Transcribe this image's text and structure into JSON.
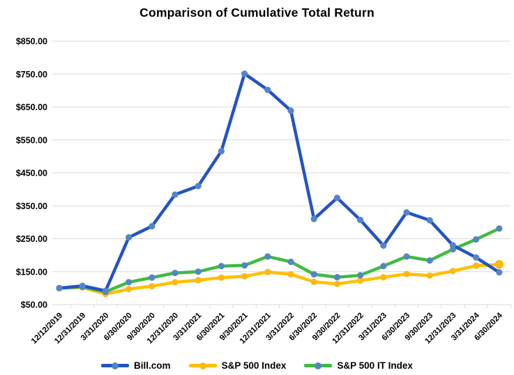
{
  "chart_data": {
    "type": "line",
    "title": "Comparison of Cumulative Total Return",
    "x_categories": [
      "12/12/2019",
      "12/31/2019",
      "3/31/2020",
      "6/30/2020",
      "9/30/2020",
      "12/31/2020",
      "3/31/2021",
      "6/30/2021",
      "9/30/2021",
      "12/31/2021",
      "3/31/2022",
      "6/30/2022",
      "9/30/2022",
      "12/31/2022",
      "3/31/2023",
      "6/30/2023",
      "9/30/2023",
      "12/31/2023",
      "3/31/2024",
      "6/30/2024"
    ],
    "y_axis": {
      "min": 50,
      "max": 850,
      "step": 100,
      "tick_labels": [
        "$850.00",
        "$750.00",
        "$650.00",
        "$550.00",
        "$450.00",
        "$350.00",
        "$250.00",
        "$150.00",
        "$50.00"
      ]
    },
    "grid": true,
    "legend_position": "bottom",
    "series": [
      {
        "name": "Bill.com",
        "line_color": "#2353c4",
        "marker_color": "#5585c8",
        "values": [
          100,
          107,
          92,
          254,
          288,
          384,
          410,
          516,
          751,
          702,
          639,
          310,
          374,
          307,
          229,
          330,
          306,
          230,
          193,
          148
        ]
      },
      {
        "name": "S&P 500 Index",
        "line_color": "#ffc000",
        "marker_color": "#fdb913",
        "last_marker_large": true,
        "values": [
          100,
          102,
          82,
          97,
          106,
          118,
          124,
          132,
          136,
          149,
          142,
          119,
          113,
          123,
          133,
          143,
          138,
          152,
          168,
          172
        ]
      },
      {
        "name": "S&P 500 IT Index",
        "line_color": "#3fbb3f",
        "marker_color": "#5585c8",
        "values": [
          100,
          104,
          89,
          118,
          132,
          146,
          150,
          167,
          169,
          196,
          180,
          142,
          133,
          139,
          167,
          196,
          184,
          218,
          248,
          281
        ]
      }
    ],
    "colors": {
      "gridline": "#d9d9d9",
      "axis_text": "#000000",
      "background": "#ffffff"
    }
  }
}
